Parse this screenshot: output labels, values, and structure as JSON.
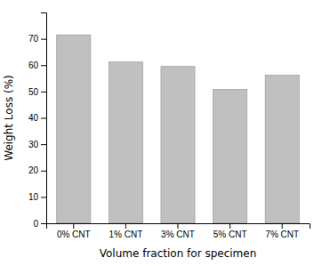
{
  "chart_data": {
    "type": "bar",
    "categories": [
      "0% CNT",
      "1% CNT",
      "3% CNT",
      "5% CNT",
      "7% CNT"
    ],
    "values": [
      71.5,
      61.2,
      59.5,
      50.8,
      56.2
    ],
    "color": "#c0c0c0",
    "xlabel": "Volume fraction for specimen",
    "ylabel": "Weight Loss (%)",
    "ylim": [
      0,
      80
    ],
    "yticks": [
      0,
      10,
      20,
      30,
      40,
      50,
      60,
      70
    ],
    "grid": false
  }
}
